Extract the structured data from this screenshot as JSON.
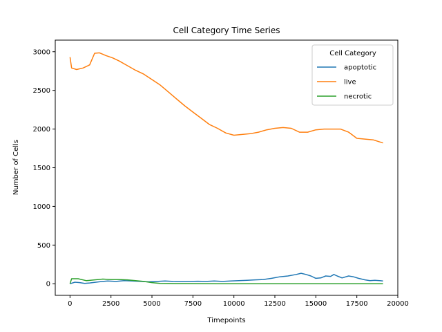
{
  "chart_data": {
    "type": "line",
    "title": "Cell Category Time Series",
    "xlabel": "Timepoints",
    "ylabel": "Number of Cells",
    "xlim": [
      -900,
      20000
    ],
    "ylim": [
      -150,
      3150
    ],
    "xticks": [
      0,
      2500,
      5000,
      7500,
      10000,
      12500,
      15000,
      17500,
      20000
    ],
    "yticks": [
      0,
      500,
      1000,
      1500,
      2000,
      2500,
      3000
    ],
    "grid": false,
    "legend": {
      "title": "Cell Category",
      "placement": "top-right"
    },
    "series": [
      {
        "name": "apoptotic",
        "color": "#1f77b4",
        "points": [
          [
            0,
            0
          ],
          [
            300,
            20
          ],
          [
            600,
            15
          ],
          [
            900,
            5
          ],
          [
            1200,
            10
          ],
          [
            1800,
            25
          ],
          [
            2300,
            35
          ],
          [
            2800,
            30
          ],
          [
            3300,
            40
          ],
          [
            3800,
            35
          ],
          [
            4300,
            30
          ],
          [
            4800,
            25
          ],
          [
            5300,
            30
          ],
          [
            5800,
            35
          ],
          [
            6300,
            30
          ],
          [
            6800,
            28
          ],
          [
            7300,
            30
          ],
          [
            7800,
            32
          ],
          [
            8300,
            30
          ],
          [
            8800,
            35
          ],
          [
            9300,
            30
          ],
          [
            9800,
            35
          ],
          [
            10300,
            40
          ],
          [
            10800,
            45
          ],
          [
            11300,
            50
          ],
          [
            11800,
            55
          ],
          [
            12300,
            70
          ],
          [
            12800,
            90
          ],
          [
            13300,
            100
          ],
          [
            13800,
            120
          ],
          [
            14100,
            135
          ],
          [
            14400,
            120
          ],
          [
            14700,
            100
          ],
          [
            15000,
            70
          ],
          [
            15300,
            75
          ],
          [
            15600,
            100
          ],
          [
            15900,
            95
          ],
          [
            16100,
            120
          ],
          [
            16300,
            100
          ],
          [
            16600,
            75
          ],
          [
            17000,
            100
          ],
          [
            17300,
            90
          ],
          [
            17600,
            70
          ],
          [
            18000,
            50
          ],
          [
            18300,
            40
          ],
          [
            18600,
            45
          ],
          [
            18900,
            40
          ],
          [
            19100,
            35
          ]
        ]
      },
      {
        "name": "live",
        "color": "#ff7f0e",
        "points": [
          [
            0,
            2930
          ],
          [
            100,
            2790
          ],
          [
            400,
            2770
          ],
          [
            800,
            2790
          ],
          [
            1200,
            2830
          ],
          [
            1500,
            2980
          ],
          [
            1800,
            2985
          ],
          [
            2200,
            2950
          ],
          [
            2600,
            2920
          ],
          [
            3000,
            2880
          ],
          [
            3500,
            2820
          ],
          [
            4000,
            2760
          ],
          [
            4500,
            2710
          ],
          [
            5000,
            2640
          ],
          [
            5500,
            2570
          ],
          [
            6000,
            2480
          ],
          [
            6500,
            2390
          ],
          [
            7000,
            2300
          ],
          [
            7500,
            2220
          ],
          [
            8000,
            2140
          ],
          [
            8500,
            2060
          ],
          [
            9000,
            2010
          ],
          [
            9500,
            1950
          ],
          [
            10000,
            1920
          ],
          [
            10500,
            1930
          ],
          [
            11000,
            1940
          ],
          [
            11500,
            1960
          ],
          [
            12000,
            1990
          ],
          [
            12500,
            2010
          ],
          [
            13000,
            2020
          ],
          [
            13500,
            2010
          ],
          [
            14000,
            1960
          ],
          [
            14500,
            1960
          ],
          [
            15000,
            1990
          ],
          [
            15500,
            2000
          ],
          [
            16000,
            2000
          ],
          [
            16500,
            2000
          ],
          [
            17000,
            1960
          ],
          [
            17500,
            1880
          ],
          [
            18000,
            1870
          ],
          [
            18500,
            1860
          ],
          [
            19100,
            1820
          ]
        ]
      },
      {
        "name": "necrotic",
        "color": "#2ca02c",
        "points": [
          [
            0,
            0
          ],
          [
            100,
            65
          ],
          [
            500,
            65
          ],
          [
            1000,
            40
          ],
          [
            1500,
            50
          ],
          [
            2000,
            60
          ],
          [
            2500,
            55
          ],
          [
            3000,
            55
          ],
          [
            3500,
            50
          ],
          [
            4000,
            40
          ],
          [
            4500,
            30
          ],
          [
            5000,
            15
          ],
          [
            5500,
            5
          ],
          [
            6000,
            3
          ],
          [
            7000,
            2
          ],
          [
            8000,
            1
          ],
          [
            9000,
            0
          ],
          [
            10000,
            0
          ],
          [
            12000,
            0
          ],
          [
            14000,
            0
          ],
          [
            16000,
            0
          ],
          [
            18000,
            0
          ],
          [
            19100,
            0
          ]
        ]
      }
    ]
  }
}
